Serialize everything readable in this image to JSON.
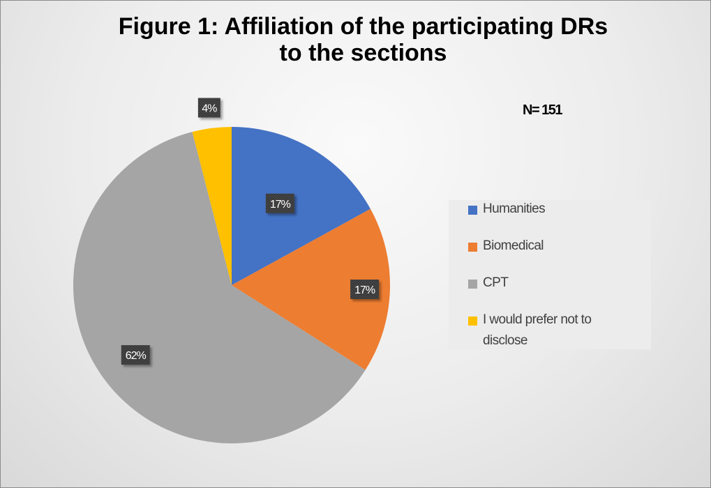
{
  "title_lines": [
    "Figure 1: Affiliation of the participating DRs",
    "to the sections"
  ],
  "note": "N= 151",
  "chart_data": {
    "type": "pie",
    "title": "Figure 1: Affiliation of the participating DRs to the sections",
    "annotation": "N= 151",
    "categories": [
      "Humanities",
      "Biomedical",
      "CPT",
      "I would prefer not to disclose"
    ],
    "values": [
      17,
      17,
      62,
      4
    ],
    "data_labels": [
      "17%",
      "17%",
      "62%",
      "4%"
    ],
    "colors": [
      "#4472C4",
      "#ED7D31",
      "#A5A5A5",
      "#FFC000"
    ],
    "legend_position": "right",
    "start_angle_deg": 0,
    "direction": "clockwise"
  }
}
